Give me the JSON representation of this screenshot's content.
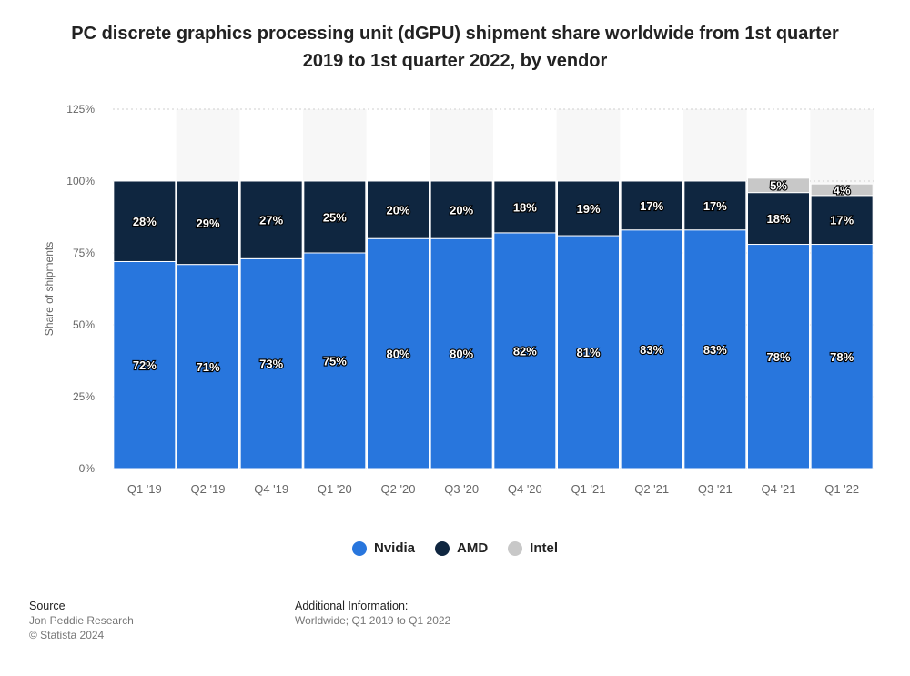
{
  "chart_data": {
    "type": "bar",
    "stacked": true,
    "title": "PC discrete graphics processing unit (dGPU) shipment share worldwide from 1st quarter 2019 to 1st quarter 2022, by vendor",
    "ylabel": "Share of shipments",
    "ylim": [
      0,
      125
    ],
    "yticks": [
      "0%",
      "25%",
      "50%",
      "75%",
      "100%",
      "125%"
    ],
    "ytick_values": [
      0,
      25,
      50,
      75,
      100,
      125
    ],
    "grid": true,
    "legend_position": "bottom",
    "categories": [
      "Q1 '19",
      "Q2 '19",
      "Q4 '19",
      "Q1 '20",
      "Q2 '20",
      "Q3 '20",
      "Q4 '20",
      "Q1 '21",
      "Q2 '21",
      "Q3 '21",
      "Q4 '21",
      "Q1 '22"
    ],
    "series": [
      {
        "name": "Nvidia",
        "color": "#2876dd",
        "values": [
          72,
          71,
          73,
          75,
          80,
          80,
          82,
          81,
          83,
          83,
          78,
          78
        ]
      },
      {
        "name": "AMD",
        "color": "#0f2640",
        "values": [
          28,
          29,
          27,
          25,
          20,
          20,
          18,
          19,
          17,
          17,
          18,
          17
        ]
      },
      {
        "name": "Intel",
        "color": "#c8c8c8",
        "values": [
          null,
          null,
          null,
          null,
          null,
          null,
          null,
          null,
          null,
          null,
          5,
          4
        ]
      }
    ],
    "value_suffix": "%"
  },
  "footer": {
    "source_heading": "Source",
    "source_line1": "Jon Peddie Research",
    "source_line2": "© Statista 2024",
    "addinfo_heading": "Additional Information:",
    "addinfo_text": "Worldwide; Q1 2019 to Q1 2022"
  }
}
